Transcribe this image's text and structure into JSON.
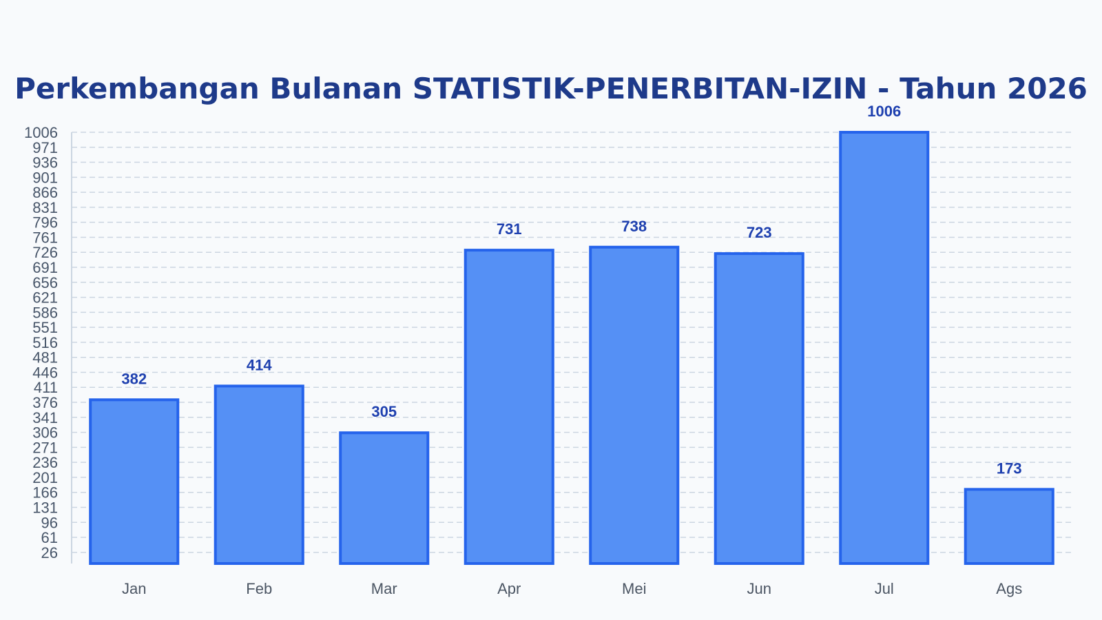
{
  "chart_data": {
    "type": "bar",
    "title": "Perkembangan Bulanan STATISTIK-PENERBITAN-IZIN - Tahun 2026",
    "xlabel": "",
    "ylabel": "",
    "categories": [
      "Jan",
      "Feb",
      "Mar",
      "Apr",
      "Mei",
      "Jun",
      "Jul",
      "Ags"
    ],
    "values": [
      382,
      414,
      305,
      731,
      738,
      723,
      1006,
      173
    ],
    "yticks": [
      26,
      61,
      96,
      131,
      166,
      201,
      236,
      271,
      306,
      341,
      376,
      411,
      446,
      481,
      516,
      551,
      586,
      621,
      656,
      691,
      726,
      761,
      796,
      831,
      866,
      901,
      936,
      971,
      1006
    ],
    "ylim": [
      0,
      1006
    ],
    "grid": true,
    "legend": "none",
    "colors": {
      "bar_fill": "#5590f5",
      "bar_stroke": "#2563eb",
      "data_label": "#1e40af",
      "title": "#1e3a8a",
      "grid": "#cbd5e1",
      "axis": "#cbd5e1"
    }
  }
}
